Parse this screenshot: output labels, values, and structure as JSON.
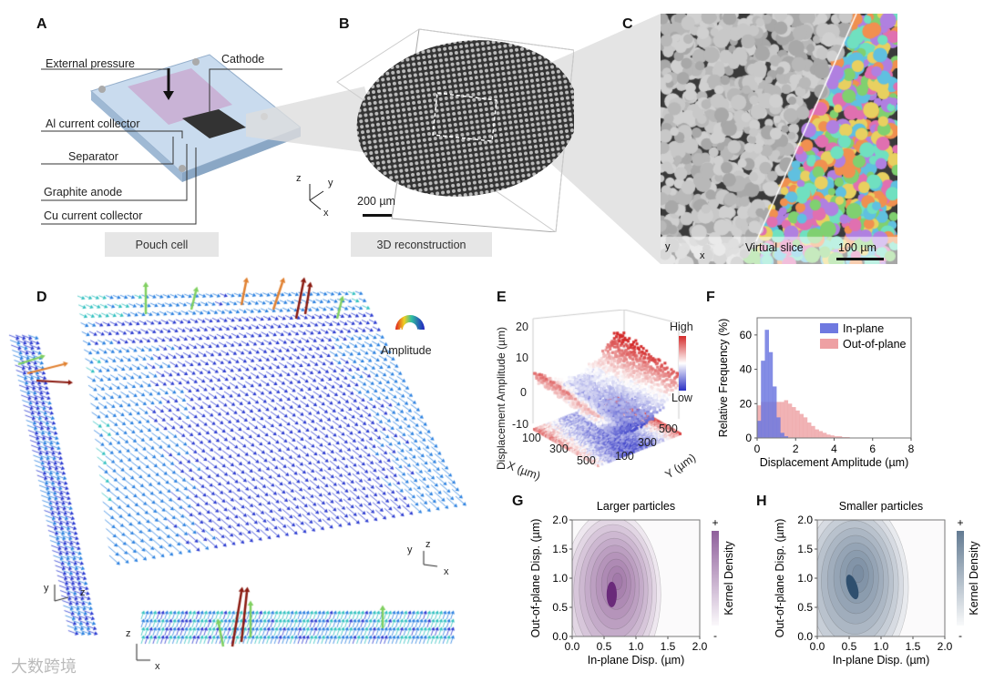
{
  "panels": {
    "A": {
      "label": "A",
      "annotations": [
        "External pressure",
        "Cathode",
        "Al current collector",
        "Separator",
        "Graphite anode",
        "Cu current collector"
      ],
      "caption": "Pouch cell"
    },
    "B": {
      "label": "B",
      "scale_bar": "200 µm",
      "axes": {
        "x": "x",
        "y": "y",
        "z": "z"
      },
      "caption": "3D reconstruction"
    },
    "C": {
      "label": "C",
      "overlay": "Virtual slice",
      "scale_bar": "100 µm",
      "axes": {
        "x": "x",
        "y": "y"
      }
    },
    "D": {
      "label": "D",
      "colorwheel_label": "Amplitude",
      "colorwheel_signs": [
        "+",
        "-"
      ],
      "side_axes": {
        "y": "y",
        "z": "z"
      },
      "main_axes": {
        "x": "x",
        "y": "y",
        "z": "z"
      },
      "bottom_axes": {
        "x": "x",
        "z": "z"
      }
    },
    "E": {
      "label": "E",
      "zlabel": "Displacement Amplitude (µm)",
      "zticks": [
        "20",
        "10",
        "0",
        "-10"
      ],
      "xlabel": "X (µm)",
      "xticks": [
        "100",
        "300",
        "500"
      ],
      "ylabel": "Y (µm)",
      "yticks": [
        "500",
        "300",
        "100"
      ],
      "colorbar_high": "High",
      "colorbar_low": "Low",
      "colors": {
        "high": "#d42b2b",
        "mid": "#ffffff",
        "low": "#2a2fc4"
      }
    },
    "F": {
      "label": "F"
    },
    "G": {
      "label": "G"
    },
    "H": {
      "label": "H"
    }
  },
  "watermark": "大数跨境",
  "chart_data": [
    {
      "id": "F",
      "type": "bar",
      "xlabel": "Displacement Amplitude (µm)",
      "ylabel": "Relative Frequency (%)",
      "xlim": [
        0,
        8
      ],
      "ylim": [
        0,
        70
      ],
      "xticks": [
        "0",
        "2",
        "4",
        "6",
        "8"
      ],
      "yticks": [
        "0",
        "20",
        "40",
        "60"
      ],
      "bin_width": 0.2,
      "legend_position": "top-right",
      "series": [
        {
          "name": "In-plane",
          "color": "#6f79e0",
          "values": [
            10,
            45,
            63,
            50,
            30,
            12,
            3,
            1
          ]
        },
        {
          "name": "Out-of-plane",
          "color": "#eea0a3",
          "values": [
            19,
            21,
            21,
            21,
            21,
            21,
            21,
            22,
            20,
            18,
            16,
            14,
            12,
            9,
            7,
            5,
            4,
            3,
            2,
            1.5,
            1,
            1,
            0.5,
            0.5
          ]
        }
      ]
    },
    {
      "id": "G",
      "type": "heatmap",
      "title": "Larger particles",
      "xlabel": "In-plane Disp. (µm)",
      "ylabel": "Out-of-plane Disp. (µm)",
      "xlim": [
        0,
        2
      ],
      "ylim": [
        0,
        2
      ],
      "xticks": [
        "0.0",
        "0.5",
        "1.0",
        "1.5",
        "2.0"
      ],
      "yticks": [
        "0.0",
        "0.5",
        "1.0",
        "1.5",
        "2.0"
      ],
      "colorbar_label": "Kernel Density",
      "colorbar_plus": "+",
      "colorbar_minus": "-",
      "color": "#6a2a7a",
      "peak": {
        "x": 0.62,
        "y": 0.72
      },
      "spread": {
        "x": 0.35,
        "y": 0.9
      }
    },
    {
      "id": "H",
      "type": "heatmap",
      "title": "Smaller particles",
      "xlabel": "In-plane Disp. (µm)",
      "ylabel": "Out-of-plane Disp. (µm)",
      "xlim": [
        0,
        2
      ],
      "ylim": [
        0,
        2
      ],
      "xticks": [
        "0.0",
        "0.5",
        "1.0",
        "1.5",
        "2.0"
      ],
      "yticks": [
        "0.0",
        "0.5",
        "1.0",
        "1.5",
        "2.0"
      ],
      "colorbar_label": "Kernel Density",
      "colorbar_plus": "+",
      "colorbar_minus": "-",
      "color": "#2f4f6e",
      "peak": {
        "x": 0.55,
        "y": 0.85
      },
      "spread": {
        "x": 0.4,
        "y": 0.95
      }
    }
  ]
}
